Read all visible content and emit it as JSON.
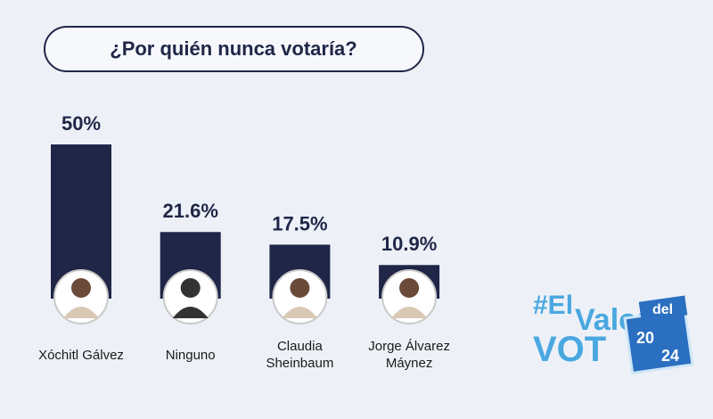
{
  "chart_data": {
    "type": "bar",
    "title": "¿Por quién nunca votaría?",
    "categories": [
      "Xóchitl Gálvez",
      "Ninguno",
      "Claudia Sheinbaum",
      "Jorge Álvarez Máynez"
    ],
    "values": [
      50,
      21.6,
      17.5,
      10.9
    ],
    "value_labels": [
      "50%",
      "21.6%",
      "17.5%",
      "10.9%"
    ],
    "color": "#1f2647"
  },
  "logo": {
    "hash": "#El",
    "word": "Valor",
    "del": "del",
    "vot": "VOT",
    "year": [
      "20",
      "24"
    ]
  }
}
